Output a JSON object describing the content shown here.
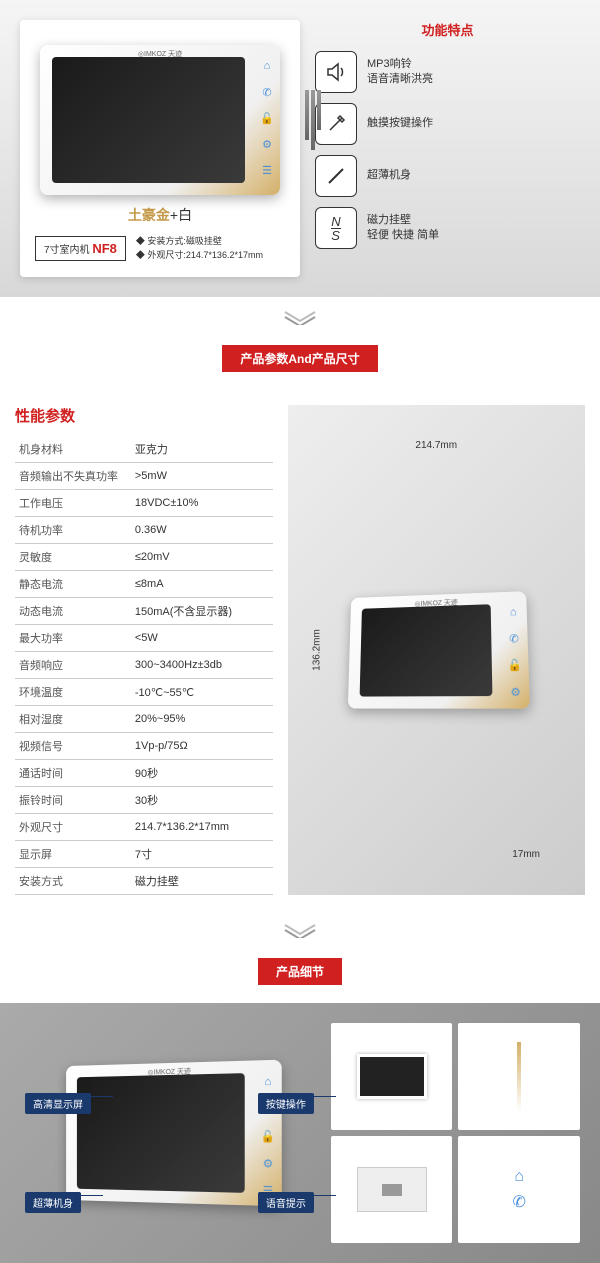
{
  "section1": {
    "brand": "◎IMKOZ 天迹",
    "color_label_gold": "土豪金",
    "color_label_plus": "+",
    "color_label_white": "白",
    "model_prefix": "7寸室内机",
    "model_code": "NF8",
    "mini_spec1": "◆ 安装方式:磁吸挂壁",
    "mini_spec2": "◆ 外观尺寸:214.7*136.2*17mm",
    "features_title": "功能特点",
    "features": [
      {
        "text1": "MP3响铃",
        "text2": "语音清晰洪亮"
      },
      {
        "text1": "触摸按键操作",
        "text2": ""
      },
      {
        "text1": "超薄机身",
        "text2": ""
      },
      {
        "text1": "磁力挂壁",
        "text2": "轻便 快捷 简单"
      }
    ]
  },
  "section2": {
    "title": "产品参数And产品尺寸",
    "spec_title": "性能参数",
    "specs": [
      {
        "k": "机身材料",
        "v": "亚克力"
      },
      {
        "k": "音频输出不失真功率",
        "v": ">5mW"
      },
      {
        "k": "工作电压",
        "v": "18VDC±10%"
      },
      {
        "k": "待机功率",
        "v": "0.36W"
      },
      {
        "k": "灵敏度",
        "v": "≤20mV"
      },
      {
        "k": "静态电流",
        "v": "≤8mA"
      },
      {
        "k": "动态电流",
        "v": "150mA(不含显示器)"
      },
      {
        "k": "最大功率",
        "v": "<5W"
      },
      {
        "k": "音频响应",
        "v": "300~3400Hz±3db"
      },
      {
        "k": "环境温度",
        "v": "-10℃~55℃"
      },
      {
        "k": "相对湿度",
        "v": "20%~95%"
      },
      {
        "k": "视频信号",
        "v": "1Vp-p/75Ω"
      },
      {
        "k": "通话时间",
        "v": "90秒"
      },
      {
        "k": "振铃时间",
        "v": "30秒"
      },
      {
        "k": "外观尺寸",
        "v": "214.7*136.2*17mm"
      },
      {
        "k": "显示屏",
        "v": "7寸"
      },
      {
        "k": "安装方式",
        "v": "磁力挂壁"
      }
    ],
    "dim_w": "214.7mm",
    "dim_h": "136.2mm",
    "dim_d": "17mm"
  },
  "section3": {
    "title": "产品细节",
    "callouts": {
      "c1": "高清显示屏",
      "c2": "超薄机身",
      "c3": "按键操作",
      "c4": "语音提示"
    }
  },
  "colors": {
    "accent": "#d02020",
    "callout_bg": "#1a3a6e",
    "icon_blue": "#4a90d9",
    "gold": "#c49a4a"
  }
}
